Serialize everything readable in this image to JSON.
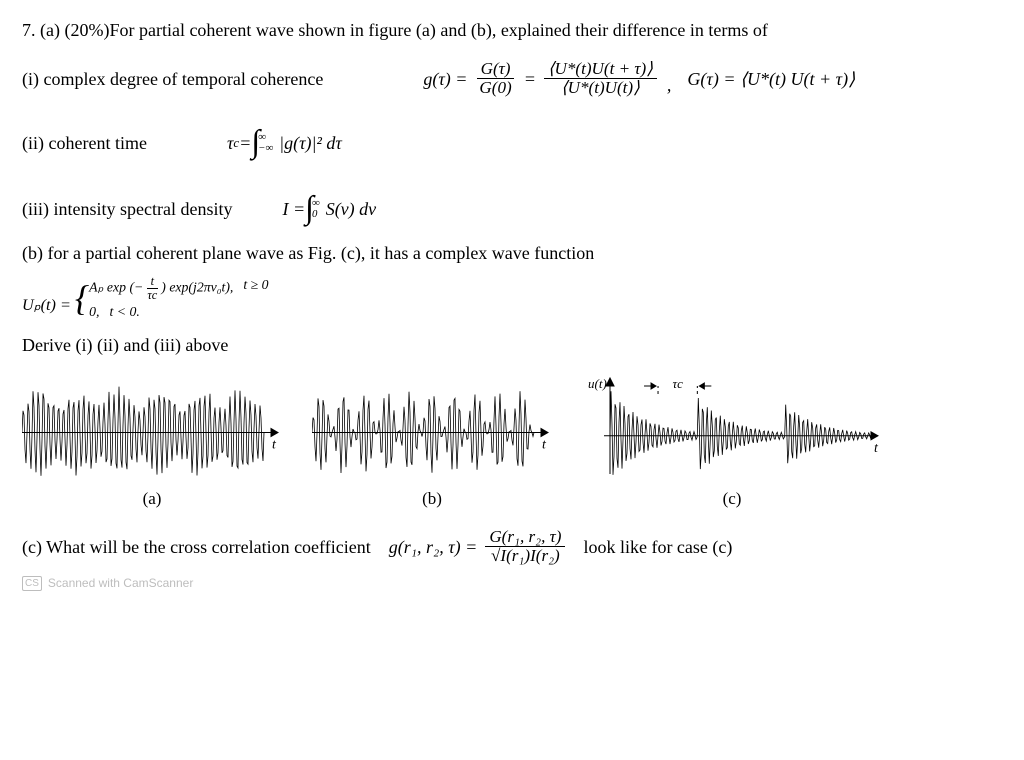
{
  "q": {
    "intro": "7. (a) (20%)For partial coherent wave shown in figure (a) and (b), explained their difference in terms of",
    "i_label": "(i) complex degree of temporal coherence",
    "ii_label": "(ii) coherent time",
    "iii_label": "(iii) intensity spectral density",
    "b_label": "(b) for a partial coherent plane wave as Fig. (c), it has a complex wave function",
    "derive": "Derive (i) (ii) and (iii) above",
    "c_label": "(c) What will be the cross correlation coefficient",
    "c_tail": "look like for case (c)"
  },
  "eq": {
    "g_lhs": "g(τ) =",
    "g_frac1_num": "G(τ)",
    "g_frac1_den": "G(0)",
    "g_eq": "=",
    "g_frac2_num": "⟨U*(t)U(t + τ)⟩",
    "g_frac2_den": "⟨U*(t)U(t)⟩",
    "G_def": "G(τ) = ⟨U*(t) U(t + τ)⟩",
    "comma": ",",
    "tau_c_lhs": "τ",
    "tau_c_sub": "c",
    "tau_c_eq": " = ",
    "int_upper1": "∞",
    "int_lower1": "−∞",
    "tau_c_integrand": "|g(τ)|² dτ",
    "I_lhs": "I = ",
    "int_upper2": "∞",
    "int_lower2": "0",
    "I_integrand": "S(ν) dν",
    "Up_lhs": "Uₚ(t) = ",
    "case1_a": "Aₚ exp",
    "case1_exp_num": "t",
    "case1_exp_den": "τc",
    "case1_b": "exp(j2πν₀t),",
    "case1_cond": "t ≥ 0",
    "case2_a": "0,",
    "case2_cond": "t < 0.",
    "gr_lhs": "g(r₁, r₂, τ) =",
    "gr_num": "G(r₁, r₂, τ)",
    "gr_den": "√I(r₁)I(r₂)"
  },
  "fig": {
    "a_label": "(a)",
    "b_label": "(b)",
    "c_label": "(c)",
    "t_axis": "t",
    "u_axis": "u(t)",
    "tau_c_marker": "τc",
    "width_a": 260,
    "width_b": 240,
    "width_c": 300,
    "height": 110,
    "stroke": "#000000",
    "bg": "#ffffff",
    "envelope_a": {
      "osc_periods": 48,
      "amp_mod_periods": 6,
      "noise": 0.25
    },
    "envelope_b": {
      "osc_periods": 44,
      "amp_mod_periods": 10,
      "noise": 0.15,
      "overall_decay": 0.0
    },
    "envelope_c": {
      "osc_periods": 60,
      "segments": 3,
      "decay": 2.5
    }
  },
  "watermark": {
    "cs": "CS",
    "text": "Scanned with CamScanner"
  },
  "style": {
    "font_family": "Times New Roman",
    "font_size_pt": 13,
    "text_color": "#000000",
    "background": "#ffffff"
  }
}
